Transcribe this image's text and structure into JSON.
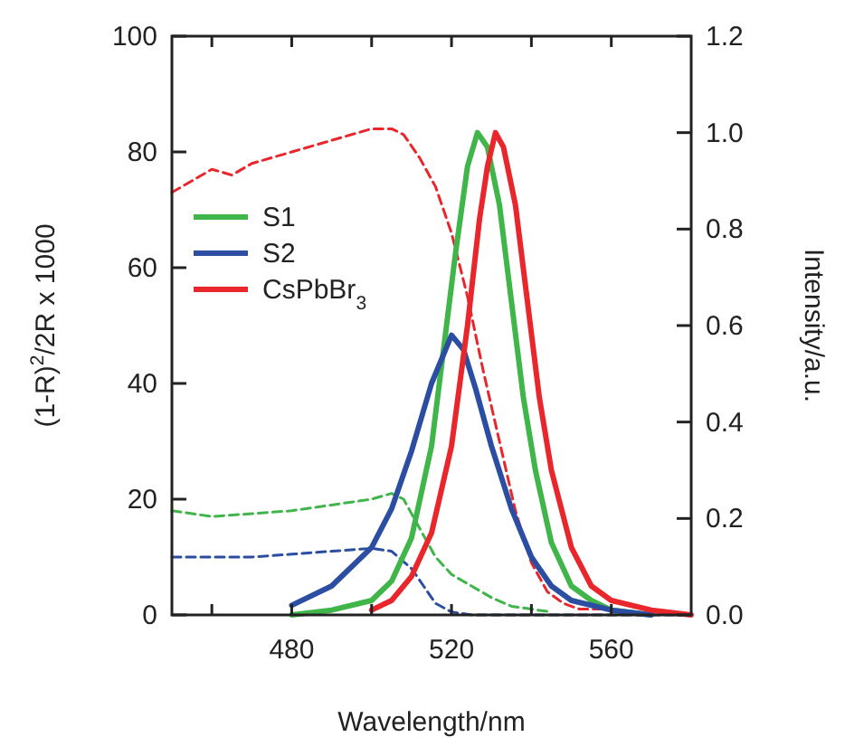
{
  "chart_data": {
    "type": "line",
    "xlabel": "Wavelength/nm",
    "ylabel": "(1-R)$^{2}$/2R x 1000",
    "y2label": "Intensity/a.u.",
    "xlim": [
      450,
      580
    ],
    "xticks": [
      {
        "value": 460,
        "label": null
      },
      480,
      {
        "value": 500,
        "label": null
      },
      520,
      {
        "value": 540,
        "label": null
      },
      560
    ],
    "ylim": [
      0,
      100
    ],
    "yticks": [
      0,
      20,
      40,
      60,
      80,
      100
    ],
    "y2lim": [
      0,
      1.2
    ],
    "y2ticks": [
      {
        "value": 0,
        "label": "0.0"
      },
      0.2,
      0.4,
      0.6,
      0.8,
      {
        "value": 1,
        "label": "1.0"
      },
      1.2
    ],
    "legend": "left",
    "grid": false,
    "series": [
      {
        "color": "#e8262b",
        "line_style": "dashed",
        "x": [
          450,
          455,
          460,
          465,
          470,
          475,
          480,
          485,
          490,
          495,
          500,
          505,
          508,
          512,
          516,
          520,
          524,
          528,
          532,
          536,
          540,
          544,
          548,
          552,
          560
        ],
        "values": [
          73,
          75,
          77,
          76,
          78,
          79,
          80,
          81,
          82,
          83,
          84,
          84,
          83,
          79,
          74,
          66,
          55,
          42,
          30,
          18,
          9,
          4,
          2,
          1,
          1
        ]
      },
      {
        "color": "#3fb54a",
        "line_style": "dashed",
        "x": [
          450,
          460,
          470,
          480,
          490,
          500,
          505,
          508,
          512,
          516,
          520,
          525,
          530,
          535,
          540,
          545
        ],
        "values": [
          18,
          17,
          17.5,
          18,
          19,
          20,
          21,
          20,
          15,
          10,
          7,
          5,
          3,
          1.5,
          1,
          0.5
        ]
      },
      {
        "color": "#2b4ea2",
        "line_style": "dashed",
        "x": [
          450,
          460,
          470,
          480,
          490,
          500,
          505,
          510,
          513,
          516,
          520,
          525,
          580
        ],
        "values": [
          10,
          10,
          10,
          10.5,
          11,
          11.5,
          11,
          8,
          5,
          2,
          0.5,
          0,
          0
        ]
      },
      {
        "name": "S1",
        "color": "#3fb54a",
        "axis": "y2",
        "line_style": "solid",
        "x": [
          480,
          490,
          500,
          505,
          510,
          515,
          518,
          521,
          524,
          526.5,
          529,
          532,
          535,
          538,
          541,
          545,
          550,
          555,
          560,
          570
        ],
        "values": [
          0.0,
          0.01,
          0.03,
          0.07,
          0.16,
          0.35,
          0.55,
          0.75,
          0.93,
          1.0,
          0.97,
          0.85,
          0.65,
          0.45,
          0.3,
          0.15,
          0.06,
          0.03,
          0.01,
          0.0
        ]
      },
      {
        "name": "S2",
        "color": "#2b4ea2",
        "axis": "y2",
        "line_style": "solid",
        "x": [
          480,
          490,
          500,
          505,
          510,
          515,
          520,
          523,
          526,
          530,
          535,
          540,
          545,
          550,
          560,
          570
        ],
        "values": [
          0.02,
          0.06,
          0.14,
          0.22,
          0.34,
          0.48,
          0.58,
          0.55,
          0.47,
          0.35,
          0.22,
          0.12,
          0.06,
          0.03,
          0.01,
          0.0
        ]
      },
      {
        "name": "CsPbBr$_{3}$",
        "color": "#e8262b",
        "axis": "y2",
        "line_style": "solid",
        "x": [
          500,
          505,
          510,
          515,
          520,
          524,
          527,
          529,
          531,
          533,
          536,
          539,
          542,
          545,
          550,
          555,
          560,
          570,
          580
        ],
        "values": [
          0.01,
          0.03,
          0.08,
          0.17,
          0.35,
          0.6,
          0.82,
          0.93,
          1.0,
          0.97,
          0.85,
          0.65,
          0.45,
          0.3,
          0.14,
          0.06,
          0.03,
          0.01,
          0.0
        ]
      }
    ]
  }
}
